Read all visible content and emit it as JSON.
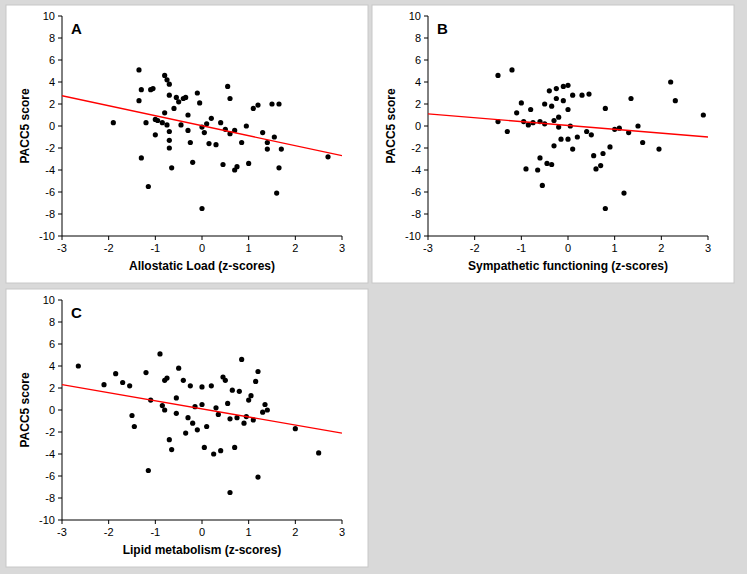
{
  "chart_data": [
    {
      "type": "scatter",
      "title": "A",
      "x_label": "Allostatic Load (z-scores)",
      "y_label": "PACC5 score",
      "xlim": [
        -3,
        3
      ],
      "ylim": [
        -10,
        10
      ],
      "xticks": [
        -3,
        -2,
        -1,
        0,
        1,
        2,
        3
      ],
      "yticks": [
        -10,
        -8,
        -6,
        -4,
        -2,
        0,
        2,
        4,
        6,
        8,
        10
      ],
      "grid": false,
      "series": [
        {
          "type": "scatter",
          "marker": "circle",
          "color": "#000000",
          "x": [
            -1.9,
            -1.35,
            -1.35,
            -1.3,
            -1.3,
            -1.2,
            -1.15,
            -1.1,
            -1.05,
            -1.0,
            -1.0,
            -0.95,
            -0.85,
            -0.8,
            -0.8,
            -0.75,
            -0.75,
            -0.7,
            -0.7,
            -0.7,
            -0.7,
            -0.7,
            -0.65,
            -0.6,
            -0.55,
            -0.5,
            -0.45,
            -0.4,
            -0.35,
            -0.3,
            -0.3,
            -0.25,
            -0.2,
            -0.1,
            -0.05,
            0.0,
            0.0,
            0.05,
            0.1,
            0.15,
            0.2,
            0.3,
            0.4,
            0.45,
            0.5,
            0.55,
            0.6,
            0.6,
            0.7,
            0.7,
            0.75,
            0.85,
            0.95,
            1.0,
            1.1,
            1.2,
            1.3,
            1.4,
            1.4,
            1.5,
            1.55,
            1.6,
            1.65,
            1.65,
            1.7,
            2.7
          ],
          "values": [
            0.3,
            5.1,
            2.3,
            3.3,
            -2.9,
            0.3,
            -5.5,
            3.3,
            3.4,
            0.6,
            -0.8,
            0.5,
            0.3,
            4.6,
            1.2,
            4.2,
            0.1,
            3.8,
            2.8,
            -0.5,
            -1.3,
            -2.0,
            -3.8,
            1.6,
            2.6,
            2.2,
            0.1,
            2.5,
            2.6,
            1.0,
            -0.4,
            -1.5,
            -3.3,
            3.0,
            2.1,
            -0.1,
            -7.5,
            -0.6,
            0.2,
            -1.6,
            0.7,
            -1.7,
            0.3,
            -3.5,
            -0.3,
            3.6,
            2.5,
            -0.7,
            -0.4,
            -4.0,
            -3.7,
            -1.5,
            0.0,
            -3.4,
            1.6,
            1.9,
            -0.6,
            -2.1,
            -1.5,
            2.0,
            -1.0,
            -6.1,
            -3.8,
            2.0,
            -2.1,
            -2.8
          ]
        },
        {
          "type": "line",
          "line_style": "solid",
          "color": "#ff0000",
          "x": [
            -3,
            3
          ],
          "values": [
            2.75,
            -2.7
          ]
        }
      ]
    },
    {
      "type": "scatter",
      "title": "B",
      "x_label": "Sympathetic functioning (z-scores)",
      "y_label": "PACC5 score",
      "xlim": [
        -3,
        3
      ],
      "ylim": [
        -10,
        10
      ],
      "xticks": [
        -3,
        -2,
        -1,
        0,
        1,
        2,
        3
      ],
      "yticks": [
        -10,
        -8,
        -6,
        -4,
        -2,
        0,
        2,
        4,
        6,
        8,
        10
      ],
      "grid": false,
      "series": [
        {
          "type": "scatter",
          "marker": "circle",
          "color": "#000000",
          "x": [
            -1.5,
            -1.5,
            -1.3,
            -1.2,
            -1.1,
            -1.0,
            -0.95,
            -0.9,
            -0.85,
            -0.8,
            -0.75,
            -0.65,
            -0.6,
            -0.6,
            -0.55,
            -0.5,
            -0.5,
            -0.45,
            -0.4,
            -0.35,
            -0.35,
            -0.3,
            -0.3,
            -0.25,
            -0.25,
            -0.2,
            -0.2,
            -0.15,
            -0.1,
            -0.1,
            0.0,
            0.0,
            0.0,
            0.05,
            0.1,
            0.1,
            0.2,
            0.3,
            0.4,
            0.45,
            0.5,
            0.55,
            0.6,
            0.7,
            0.75,
            0.8,
            0.8,
            0.9,
            1.0,
            1.1,
            1.2,
            1.3,
            1.35,
            1.5,
            1.6,
            1.95,
            2.2,
            2.3,
            2.9
          ],
          "values": [
            4.6,
            0.4,
            -0.5,
            5.1,
            1.2,
            2.1,
            0.4,
            -3.9,
            0.1,
            1.5,
            0.3,
            -4.0,
            -2.9,
            0.4,
            -5.4,
            2.0,
            0.2,
            -3.4,
            3.2,
            1.8,
            -3.5,
            0.5,
            -1.8,
            3.4,
            2.5,
            0.8,
            -0.1,
            -1.2,
            3.6,
            2.3,
            3.7,
            1.5,
            -1.2,
            0.0,
            2.8,
            -2.1,
            -1.0,
            2.8,
            -0.5,
            2.9,
            -0.8,
            -2.7,
            -3.9,
            -3.6,
            -2.5,
            1.6,
            -7.5,
            -1.9,
            -0.3,
            -0.2,
            -6.1,
            -0.6,
            2.5,
            0.0,
            -1.5,
            -2.1,
            4.0,
            2.3,
            1.0
          ]
        },
        {
          "type": "line",
          "line_style": "solid",
          "color": "#ff0000",
          "x": [
            -3,
            3
          ],
          "values": [
            1.1,
            -1.0
          ]
        }
      ]
    },
    {
      "type": "scatter",
      "title": "C",
      "x_label": "Lipid metabolism (z-scores)",
      "y_label": "PACC5 score",
      "xlim": [
        -3,
        3
      ],
      "ylim": [
        -10,
        10
      ],
      "xticks": [
        -3,
        -2,
        -1,
        0,
        1,
        2,
        3
      ],
      "yticks": [
        -10,
        -8,
        -6,
        -4,
        -2,
        0,
        2,
        4,
        6,
        8,
        10
      ],
      "grid": false,
      "series": [
        {
          "type": "scatter",
          "marker": "circle",
          "color": "#000000",
          "x": [
            -2.65,
            -2.1,
            -1.85,
            -1.7,
            -1.55,
            -1.5,
            -1.45,
            -1.2,
            -1.15,
            -1.1,
            -0.9,
            -0.85,
            -0.8,
            -0.8,
            -0.75,
            -0.7,
            -0.65,
            -0.55,
            -0.55,
            -0.5,
            -0.4,
            -0.35,
            -0.3,
            -0.25,
            -0.2,
            -0.15,
            -0.1,
            0.0,
            0.0,
            0.05,
            0.1,
            0.2,
            0.25,
            0.3,
            0.35,
            0.4,
            0.45,
            0.5,
            0.55,
            0.6,
            0.6,
            0.65,
            0.7,
            0.75,
            0.8,
            0.85,
            0.9,
            0.95,
            1.0,
            1.05,
            1.1,
            1.15,
            1.2,
            1.2,
            1.3,
            1.35,
            1.4,
            2.0,
            2.5
          ],
          "values": [
            4.0,
            2.3,
            3.3,
            2.5,
            2.2,
            -0.5,
            -1.5,
            3.4,
            -5.5,
            0.9,
            5.1,
            0.4,
            2.7,
            0.0,
            2.9,
            -2.7,
            -3.6,
            -0.3,
            1.1,
            3.8,
            2.7,
            -2.1,
            -0.7,
            2.2,
            -1.2,
            0.3,
            -1.8,
            0.5,
            2.1,
            -3.4,
            -1.5,
            2.2,
            -4.0,
            0.2,
            -0.4,
            -3.7,
            3.0,
            2.7,
            0.6,
            -7.5,
            -0.8,
            1.8,
            -3.4,
            -0.7,
            1.7,
            4.6,
            -1.2,
            -0.6,
            0.9,
            1.3,
            -0.9,
            2.6,
            -6.1,
            3.5,
            -0.2,
            0.5,
            0.0,
            -1.7,
            -3.9
          ]
        },
        {
          "type": "line",
          "line_style": "solid",
          "color": "#ff0000",
          "x": [
            -3,
            3
          ],
          "values": [
            2.3,
            -2.1
          ]
        }
      ]
    }
  ]
}
